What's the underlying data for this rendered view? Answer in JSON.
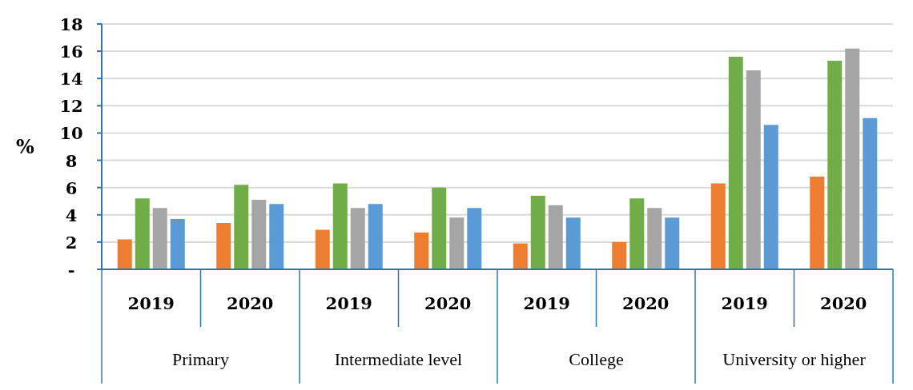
{
  "chart_data": {
    "type": "bar",
    "ylabel": "%",
    "categories": [
      "2019",
      "2020",
      "2019",
      "2020",
      "2019",
      "2020",
      "2019",
      "2020"
    ],
    "annotations": [
      "Primary",
      "Intermediate level",
      "College",
      "University or higher"
    ],
    "series": [
      {
        "color": "#ed7d31",
        "values": [
          2.2,
          3.4,
          2.9,
          2.7,
          1.9,
          2.0,
          6.3,
          6.8
        ]
      },
      {
        "color": "#70ad47",
        "values": [
          5.2,
          6.2,
          6.3,
          6.0,
          5.4,
          5.2,
          15.6,
          15.3
        ]
      },
      {
        "color": "#a5a5a5",
        "values": [
          4.5,
          5.1,
          4.5,
          3.8,
          4.7,
          4.5,
          14.6,
          16.2
        ]
      },
      {
        "color": "#5b9bd5",
        "values": [
          3.7,
          4.8,
          4.8,
          4.5,
          3.8,
          3.8,
          10.6,
          11.1
        ]
      }
    ],
    "ylim": [
      0,
      18
    ],
    "yticks": [
      {
        "value": 0,
        "label": "-"
      },
      2,
      4,
      6,
      8,
      10,
      12,
      14,
      16,
      18
    ],
    "grid": "y",
    "legend": false
  }
}
